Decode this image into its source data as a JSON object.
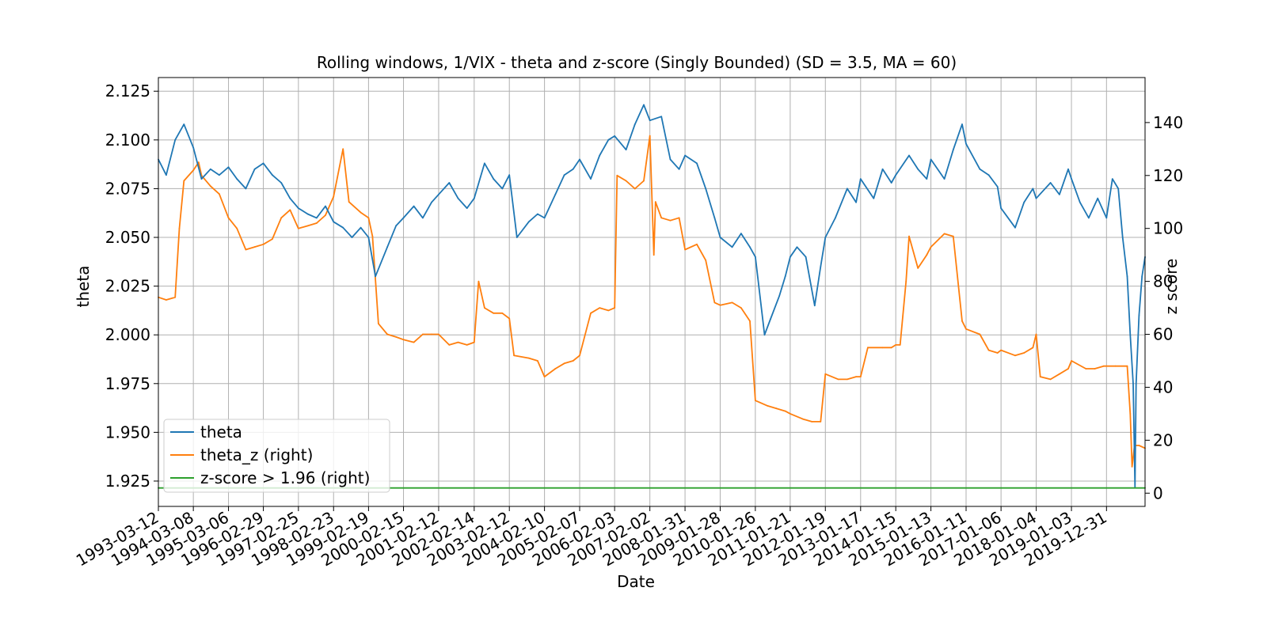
{
  "chart_data": {
    "type": "line",
    "title": "Rolling windows, 1/VIX - theta and z-score (Singly Bounded) (SD = 3.5, MA = 60)",
    "xlabel": "Date",
    "ylabel_left": "theta",
    "ylabel_right": "z score",
    "xlim": [
      "1993-03-12",
      "2021-02-01"
    ],
    "ylim_left": [
      1.912,
      2.132
    ],
    "ylim_right": [
      -5,
      157
    ],
    "x_ticks": [
      "1993-03-12",
      "1994-03-08",
      "1995-03-06",
      "1996-02-29",
      "1997-02-25",
      "1998-02-23",
      "1999-02-19",
      "2000-02-15",
      "2001-02-12",
      "2002-02-14",
      "2003-02-12",
      "2004-02-10",
      "2005-02-07",
      "2006-02-03",
      "2007-02-02",
      "2008-01-31",
      "2009-01-28",
      "2010-01-26",
      "2011-01-21",
      "2012-01-19",
      "2013-01-17",
      "2014-01-15",
      "2015-01-13",
      "2016-01-11",
      "2017-01-06",
      "2018-01-04",
      "2019-01-03",
      "2019-12-31"
    ],
    "y_ticks_left": [
      "1.925",
      "1.950",
      "1.975",
      "2.000",
      "2.025",
      "2.050",
      "2.075",
      "2.100",
      "2.125"
    ],
    "y_ticks_right": [
      "0",
      "20",
      "40",
      "60",
      "80",
      "100",
      "120",
      "140"
    ],
    "grid": true,
    "legend_position": "lower-left",
    "series": [
      {
        "name": "theta",
        "axis": "left",
        "color": "#1f77b4",
        "points": [
          [
            "1993-03-12",
            2.09
          ],
          [
            "1993-06-01",
            2.082
          ],
          [
            "1993-09-01",
            2.1
          ],
          [
            "1993-12-01",
            2.108
          ],
          [
            "1994-03-08",
            2.096
          ],
          [
            "1994-06-01",
            2.08
          ],
          [
            "1994-09-01",
            2.085
          ],
          [
            "1994-12-01",
            2.082
          ],
          [
            "1995-03-06",
            2.086
          ],
          [
            "1995-06-01",
            2.08
          ],
          [
            "1995-09-01",
            2.075
          ],
          [
            "1995-12-01",
            2.085
          ],
          [
            "1996-02-29",
            2.088
          ],
          [
            "1996-06-01",
            2.082
          ],
          [
            "1996-09-01",
            2.078
          ],
          [
            "1996-12-01",
            2.07
          ],
          [
            "1997-02-25",
            2.065
          ],
          [
            "1997-06-01",
            2.062
          ],
          [
            "1997-09-01",
            2.06
          ],
          [
            "1997-12-01",
            2.066
          ],
          [
            "1998-02-23",
            2.058
          ],
          [
            "1998-06-01",
            2.055
          ],
          [
            "1998-09-01",
            2.05
          ],
          [
            "1998-12-01",
            2.055
          ],
          [
            "1999-02-19",
            2.05
          ],
          [
            "1999-05-01",
            2.03
          ],
          [
            "1999-09-01",
            2.045
          ],
          [
            "1999-12-01",
            2.056
          ],
          [
            "2000-02-15",
            2.06
          ],
          [
            "2000-06-01",
            2.066
          ],
          [
            "2000-09-01",
            2.06
          ],
          [
            "2000-12-01",
            2.068
          ],
          [
            "2001-02-12",
            2.072
          ],
          [
            "2001-06-01",
            2.078
          ],
          [
            "2001-09-01",
            2.07
          ],
          [
            "2001-12-01",
            2.065
          ],
          [
            "2002-02-14",
            2.07
          ],
          [
            "2002-06-01",
            2.088
          ],
          [
            "2002-09-01",
            2.08
          ],
          [
            "2002-12-01",
            2.075
          ],
          [
            "2003-02-12",
            2.082
          ],
          [
            "2003-05-01",
            2.05
          ],
          [
            "2003-09-01",
            2.058
          ],
          [
            "2003-12-01",
            2.062
          ],
          [
            "2004-02-10",
            2.06
          ],
          [
            "2004-06-01",
            2.072
          ],
          [
            "2004-09-01",
            2.082
          ],
          [
            "2004-12-01",
            2.085
          ],
          [
            "2005-02-07",
            2.09
          ],
          [
            "2005-06-01",
            2.08
          ],
          [
            "2005-09-01",
            2.092
          ],
          [
            "2005-12-01",
            2.1
          ],
          [
            "2006-02-03",
            2.102
          ],
          [
            "2006-06-01",
            2.095
          ],
          [
            "2006-09-01",
            2.108
          ],
          [
            "2006-12-01",
            2.118
          ],
          [
            "2007-02-02",
            2.11
          ],
          [
            "2007-06-01",
            2.112
          ],
          [
            "2007-09-01",
            2.09
          ],
          [
            "2007-12-01",
            2.085
          ],
          [
            "2008-01-31",
            2.092
          ],
          [
            "2008-06-01",
            2.088
          ],
          [
            "2008-09-01",
            2.075
          ],
          [
            "2008-12-01",
            2.06
          ],
          [
            "2009-01-28",
            2.05
          ],
          [
            "2009-06-01",
            2.045
          ],
          [
            "2009-09-01",
            2.052
          ],
          [
            "2009-12-01",
            2.045
          ],
          [
            "2010-01-26",
            2.04
          ],
          [
            "2010-05-01",
            2.0
          ],
          [
            "2010-07-01",
            2.008
          ],
          [
            "2010-10-01",
            2.02
          ],
          [
            "2010-12-01",
            2.03
          ],
          [
            "2011-01-21",
            2.04
          ],
          [
            "2011-04-01",
            2.045
          ],
          [
            "2011-07-01",
            2.04
          ],
          [
            "2011-10-01",
            2.015
          ],
          [
            "2011-12-01",
            2.035
          ],
          [
            "2012-01-19",
            2.05
          ],
          [
            "2012-05-01",
            2.06
          ],
          [
            "2012-09-01",
            2.075
          ],
          [
            "2012-12-01",
            2.068
          ],
          [
            "2013-01-17",
            2.08
          ],
          [
            "2013-06-01",
            2.07
          ],
          [
            "2013-09-01",
            2.085
          ],
          [
            "2013-12-01",
            2.078
          ],
          [
            "2014-01-15",
            2.082
          ],
          [
            "2014-06-01",
            2.092
          ],
          [
            "2014-09-01",
            2.085
          ],
          [
            "2014-12-01",
            2.08
          ],
          [
            "2015-01-13",
            2.09
          ],
          [
            "2015-06-01",
            2.08
          ],
          [
            "2015-09-01",
            2.095
          ],
          [
            "2015-12-01",
            2.108
          ],
          [
            "2016-01-11",
            2.098
          ],
          [
            "2016-06-01",
            2.085
          ],
          [
            "2016-09-01",
            2.082
          ],
          [
            "2016-12-01",
            2.076
          ],
          [
            "2017-01-06",
            2.065
          ],
          [
            "2017-06-01",
            2.055
          ],
          [
            "2017-09-01",
            2.068
          ],
          [
            "2017-12-01",
            2.075
          ],
          [
            "2018-01-04",
            2.07
          ],
          [
            "2018-06-01",
            2.078
          ],
          [
            "2018-09-01",
            2.072
          ],
          [
            "2018-12-01",
            2.085
          ],
          [
            "2019-01-03",
            2.08
          ],
          [
            "2019-04-01",
            2.068
          ],
          [
            "2019-07-01",
            2.06
          ],
          [
            "2019-10-01",
            2.07
          ],
          [
            "2019-12-31",
            2.06
          ],
          [
            "2020-03-01",
            2.08
          ],
          [
            "2020-05-01",
            2.075
          ],
          [
            "2020-06-15",
            2.05
          ],
          [
            "2020-08-01",
            2.03
          ],
          [
            "2020-09-01",
            2.0
          ],
          [
            "2020-10-01",
            1.975
          ],
          [
            "2020-10-20",
            1.922
          ],
          [
            "2020-11-01",
            1.975
          ],
          [
            "2020-12-01",
            2.01
          ],
          [
            "2021-01-01",
            2.03
          ],
          [
            "2021-02-01",
            2.04
          ]
        ]
      },
      {
        "name": "theta_z (right)",
        "axis": "right",
        "color": "#ff7f0e",
        "points": [
          [
            "1993-03-12",
            74
          ],
          [
            "1993-06-01",
            73
          ],
          [
            "1993-09-01",
            74
          ],
          [
            "1993-10-15",
            100
          ],
          [
            "1993-12-01",
            118
          ],
          [
            "1994-03-08",
            122
          ],
          [
            "1994-05-01",
            125
          ],
          [
            "1994-06-01",
            120
          ],
          [
            "1994-09-01",
            116
          ],
          [
            "1994-12-01",
            113
          ],
          [
            "1995-03-06",
            104
          ],
          [
            "1995-06-01",
            100
          ],
          [
            "1995-09-01",
            92
          ],
          [
            "1995-12-01",
            93
          ],
          [
            "1996-02-29",
            94
          ],
          [
            "1996-06-01",
            96
          ],
          [
            "1996-09-01",
            104
          ],
          [
            "1996-12-01",
            107
          ],
          [
            "1997-02-25",
            100
          ],
          [
            "1997-06-01",
            101
          ],
          [
            "1997-09-01",
            102
          ],
          [
            "1997-12-01",
            105
          ],
          [
            "1998-02-23",
            112
          ],
          [
            "1998-06-01",
            130
          ],
          [
            "1998-08-01",
            110
          ],
          [
            "1998-12-01",
            106
          ],
          [
            "1999-02-19",
            104
          ],
          [
            "1999-04-01",
            97
          ],
          [
            "1999-06-01",
            64
          ],
          [
            "1999-09-01",
            60
          ],
          [
            "1999-12-01",
            59
          ],
          [
            "2000-02-15",
            58
          ],
          [
            "2000-06-01",
            57
          ],
          [
            "2000-09-01",
            60
          ],
          [
            "2000-12-01",
            60
          ],
          [
            "2001-02-12",
            60
          ],
          [
            "2001-06-01",
            56
          ],
          [
            "2001-09-01",
            57
          ],
          [
            "2001-12-01",
            56
          ],
          [
            "2002-02-14",
            57
          ],
          [
            "2002-04-01",
            80
          ],
          [
            "2002-06-01",
            70
          ],
          [
            "2002-09-01",
            68
          ],
          [
            "2002-12-01",
            68
          ],
          [
            "2003-02-12",
            66
          ],
          [
            "2003-04-01",
            52
          ],
          [
            "2003-09-01",
            51
          ],
          [
            "2003-12-01",
            50
          ],
          [
            "2004-02-10",
            44
          ],
          [
            "2004-06-01",
            47
          ],
          [
            "2004-09-01",
            49
          ],
          [
            "2004-12-01",
            50
          ],
          [
            "2005-02-07",
            52
          ],
          [
            "2005-06-01",
            68
          ],
          [
            "2005-09-01",
            70
          ],
          [
            "2005-12-01",
            69
          ],
          [
            "2006-02-03",
            70
          ],
          [
            "2006-03-01",
            120
          ],
          [
            "2006-06-01",
            118
          ],
          [
            "2006-09-01",
            115
          ],
          [
            "2006-12-01",
            118
          ],
          [
            "2007-02-02",
            135
          ],
          [
            "2007-03-15",
            90
          ],
          [
            "2007-04-01",
            110
          ],
          [
            "2007-06-01",
            104
          ],
          [
            "2007-09-01",
            103
          ],
          [
            "2007-12-01",
            104
          ],
          [
            "2008-01-31",
            92
          ],
          [
            "2008-06-01",
            94
          ],
          [
            "2008-09-01",
            88
          ],
          [
            "2008-12-01",
            72
          ],
          [
            "2009-01-28",
            71
          ],
          [
            "2009-06-01",
            72
          ],
          [
            "2009-09-01",
            70
          ],
          [
            "2009-12-01",
            65
          ],
          [
            "2010-01-26",
            35
          ],
          [
            "2010-06-01",
            33
          ],
          [
            "2010-09-01",
            32
          ],
          [
            "2010-12-01",
            31
          ],
          [
            "2011-01-21",
            30
          ],
          [
            "2011-06-01",
            28
          ],
          [
            "2011-09-01",
            27
          ],
          [
            "2011-12-01",
            27
          ],
          [
            "2012-01-19",
            45
          ],
          [
            "2012-06-01",
            43
          ],
          [
            "2012-09-01",
            43
          ],
          [
            "2012-12-01",
            44
          ],
          [
            "2013-01-17",
            44
          ],
          [
            "2013-04-01",
            55
          ],
          [
            "2013-09-01",
            55
          ],
          [
            "2013-12-01",
            55
          ],
          [
            "2014-01-15",
            56
          ],
          [
            "2014-03-01",
            56
          ],
          [
            "2014-05-01",
            80
          ],
          [
            "2014-06-01",
            97
          ],
          [
            "2014-09-01",
            85
          ],
          [
            "2014-12-01",
            90
          ],
          [
            "2015-01-13",
            93
          ],
          [
            "2015-06-01",
            98
          ],
          [
            "2015-09-01",
            97
          ],
          [
            "2015-12-01",
            65
          ],
          [
            "2016-01-11",
            62
          ],
          [
            "2016-06-01",
            60
          ],
          [
            "2016-09-01",
            54
          ],
          [
            "2016-12-01",
            53
          ],
          [
            "2017-01-06",
            54
          ],
          [
            "2017-06-01",
            52
          ],
          [
            "2017-09-01",
            53
          ],
          [
            "2017-12-01",
            55
          ],
          [
            "2018-01-04",
            60
          ],
          [
            "2018-02-15",
            44
          ],
          [
            "2018-06-01",
            43
          ],
          [
            "2018-09-01",
            45
          ],
          [
            "2018-12-01",
            47
          ],
          [
            "2019-01-03",
            50
          ],
          [
            "2019-06-01",
            47
          ],
          [
            "2019-09-01",
            47
          ],
          [
            "2019-12-01",
            48
          ],
          [
            "2019-12-31",
            48
          ],
          [
            "2020-04-01",
            48
          ],
          [
            "2020-08-01",
            48
          ],
          [
            "2020-09-01",
            30
          ],
          [
            "2020-09-20",
            10
          ],
          [
            "2020-10-15",
            18
          ],
          [
            "2020-12-01",
            18
          ],
          [
            "2021-02-01",
            17
          ]
        ]
      },
      {
        "name": "z-score > 1.96 (right)",
        "axis": "right",
        "color": "#2ca02c",
        "points": [
          [
            "1993-03-12",
            1.96
          ],
          [
            "2021-02-01",
            1.96
          ]
        ]
      }
    ]
  }
}
